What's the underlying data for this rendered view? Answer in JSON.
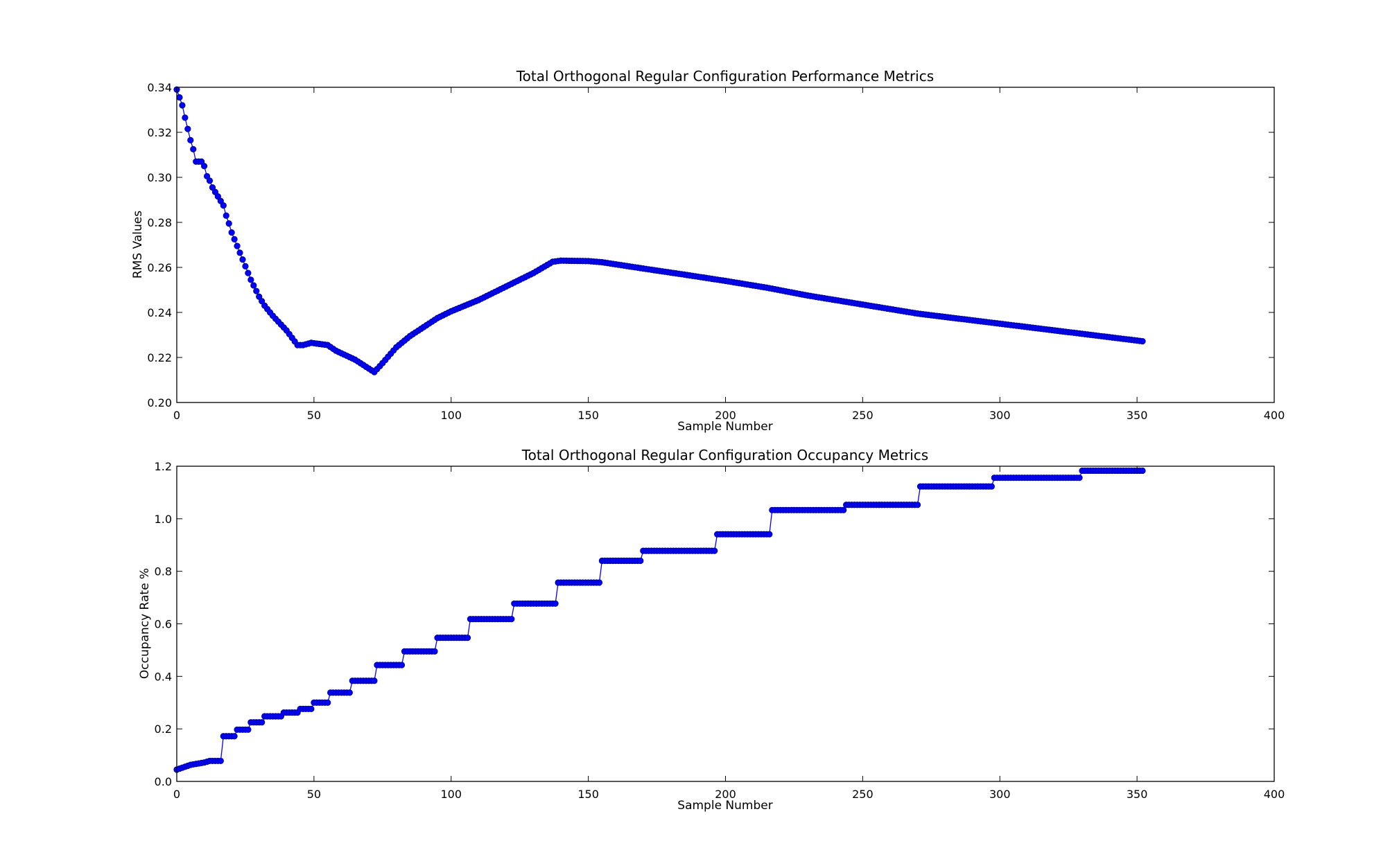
{
  "chart_data": [
    {
      "type": "line",
      "title": "Total Orthogonal Regular  Configuration Performance  Metrics",
      "xlabel": "Sample Number",
      "ylabel": "RMS Values",
      "xlim": [
        0,
        400
      ],
      "ylim": [
        0.2,
        0.34
      ],
      "xticks": [
        "0",
        "50",
        "100",
        "150",
        "200",
        "250",
        "300",
        "350",
        "400"
      ],
      "yticks": [
        "0.20",
        "0.22",
        "0.24",
        "0.26",
        "0.28",
        "0.30",
        "0.32",
        "0.34"
      ],
      "xtick_values": [
        0,
        50,
        100,
        150,
        200,
        250,
        300,
        350,
        400
      ],
      "ytick_values": [
        0.2,
        0.22,
        0.24,
        0.26,
        0.28,
        0.3,
        0.32,
        0.34
      ],
      "grid": false,
      "marker": "circle",
      "color": "#0000ff",
      "x_range": [
        0,
        352
      ],
      "keypoints": [
        [
          0,
          0.339
        ],
        [
          2,
          0.332
        ],
        [
          3,
          0.3265
        ],
        [
          4,
          0.3215
        ],
        [
          5,
          0.3165
        ],
        [
          6,
          0.3125
        ],
        [
          7,
          0.307
        ],
        [
          9,
          0.307
        ],
        [
          10,
          0.305
        ],
        [
          11,
          0.3005
        ],
        [
          12,
          0.2985
        ],
        [
          13,
          0.2955
        ],
        [
          14,
          0.2935
        ],
        [
          15,
          0.2915
        ],
        [
          16,
          0.2895
        ],
        [
          17,
          0.2875
        ],
        [
          18,
          0.283
        ],
        [
          19,
          0.2795
        ],
        [
          20,
          0.2755
        ],
        [
          21,
          0.2725
        ],
        [
          22,
          0.2695
        ],
        [
          23,
          0.2665
        ],
        [
          24,
          0.2635
        ],
        [
          25,
          0.2605
        ],
        [
          26,
          0.2575
        ],
        [
          27,
          0.2545
        ],
        [
          28,
          0.252
        ],
        [
          29,
          0.2495
        ],
        [
          30,
          0.247
        ],
        [
          31,
          0.245
        ],
        [
          32,
          0.243
        ],
        [
          35,
          0.2385
        ],
        [
          40,
          0.232
        ],
        [
          44,
          0.2255
        ],
        [
          46,
          0.2255
        ],
        [
          49,
          0.2265
        ],
        [
          55,
          0.2255
        ],
        [
          58,
          0.223
        ],
        [
          65,
          0.219
        ],
        [
          72,
          0.2135
        ],
        [
          75,
          0.2175
        ],
        [
          80,
          0.2245
        ],
        [
          85,
          0.2295
        ],
        [
          90,
          0.2335
        ],
        [
          95,
          0.2375
        ],
        [
          100,
          0.2405
        ],
        [
          110,
          0.2455
        ],
        [
          120,
          0.2515
        ],
        [
          130,
          0.2575
        ],
        [
          137,
          0.2625
        ],
        [
          140,
          0.263
        ],
        [
          150,
          0.2628
        ],
        [
          155,
          0.2623
        ],
        [
          170,
          0.2595
        ],
        [
          185,
          0.2568
        ],
        [
          200,
          0.254
        ],
        [
          215,
          0.251
        ],
        [
          230,
          0.2475
        ],
        [
          250,
          0.2435
        ],
        [
          270,
          0.2395
        ],
        [
          290,
          0.2365
        ],
        [
          310,
          0.2335
        ],
        [
          330,
          0.2305
        ],
        [
          352,
          0.2272
        ]
      ]
    },
    {
      "type": "line",
      "title": "Total Orthogonal Regular  Configuration  Occupancy Metrics",
      "xlabel": "Sample Number",
      "ylabel": "Occupancy Rate  %",
      "xlim": [
        0,
        400
      ],
      "ylim": [
        0.0,
        1.2
      ],
      "xticks": [
        "0",
        "50",
        "100",
        "150",
        "200",
        "250",
        "300",
        "350",
        "400"
      ],
      "yticks": [
        "0.0",
        "0.2",
        "0.4",
        "0.6",
        "0.8",
        "1.0",
        "1.2"
      ],
      "xtick_values": [
        0,
        50,
        100,
        150,
        200,
        250,
        300,
        350,
        400
      ],
      "ytick_values": [
        0.0,
        0.2,
        0.4,
        0.6,
        0.8,
        1.0,
        1.2
      ],
      "grid": false,
      "marker": "circle",
      "color": "#0000ff",
      "x_range": [
        0,
        352
      ],
      "keypoints": [
        [
          0,
          0.045
        ],
        [
          5,
          0.063
        ],
        [
          10,
          0.072
        ],
        [
          12,
          0.078
        ]
      ],
      "steps": [
        [
          12,
          0.078
        ],
        [
          17,
          0.172
        ],
        [
          22,
          0.197
        ],
        [
          27,
          0.225
        ],
        [
          32,
          0.248
        ],
        [
          39,
          0.262
        ],
        [
          45,
          0.276
        ],
        [
          50,
          0.3
        ],
        [
          56,
          0.338
        ],
        [
          64,
          0.383
        ],
        [
          73,
          0.443
        ],
        [
          83,
          0.495
        ],
        [
          95,
          0.547
        ],
        [
          107,
          0.618
        ],
        [
          123,
          0.677
        ],
        [
          139,
          0.757
        ],
        [
          155,
          0.84
        ],
        [
          170,
          0.878
        ],
        [
          197,
          0.941
        ],
        [
          217,
          1.033
        ],
        [
          244,
          1.053
        ],
        [
          271,
          1.123
        ],
        [
          298,
          1.156
        ],
        [
          330,
          1.183
        ]
      ]
    }
  ]
}
